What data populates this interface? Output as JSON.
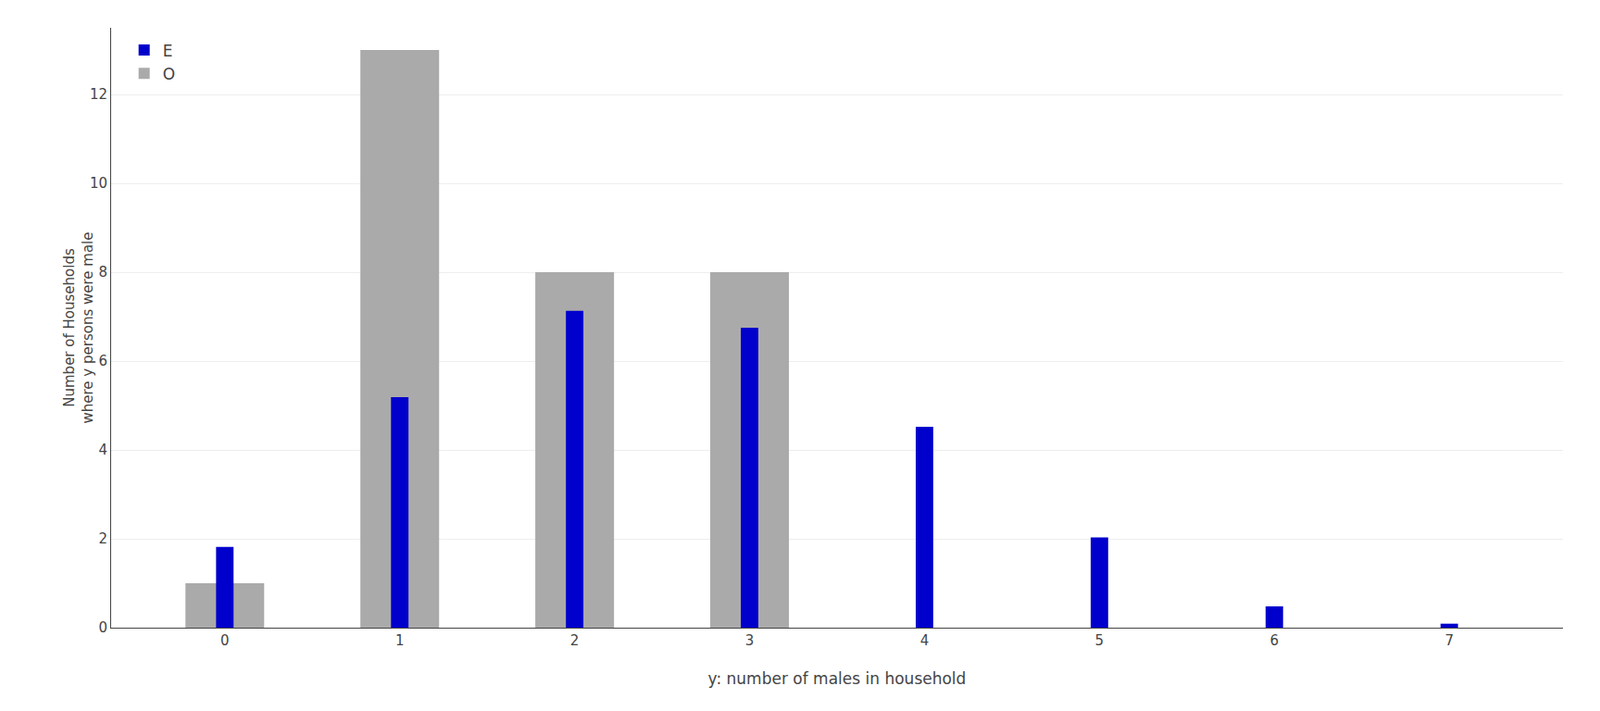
{
  "chart_data": {
    "type": "bar",
    "x": [
      0,
      1,
      2,
      3,
      4,
      5,
      6,
      7
    ],
    "series": [
      {
        "name": "O",
        "color": "#aaaaaa",
        "values": [
          1,
          13,
          8,
          8,
          0,
          0,
          0,
          0
        ]
      },
      {
        "name": "E",
        "color": "#0000cc",
        "values": [
          1.82,
          5.19,
          7.13,
          6.75,
          4.52,
          2.03,
          0.48,
          0.09
        ]
      }
    ],
    "xlabel": "y: number of males in household",
    "ylabel": "Number of Households\nwhere y persons were male",
    "xlim": [
      -0.65,
      7.65
    ],
    "xticks": [
      0,
      1,
      2,
      3,
      4,
      5,
      6,
      7
    ],
    "ylim": [
      0,
      13.5
    ],
    "yticks": [
      0,
      2,
      4,
      6,
      8,
      10,
      12
    ],
    "grid": true,
    "legend": "upper left"
  }
}
